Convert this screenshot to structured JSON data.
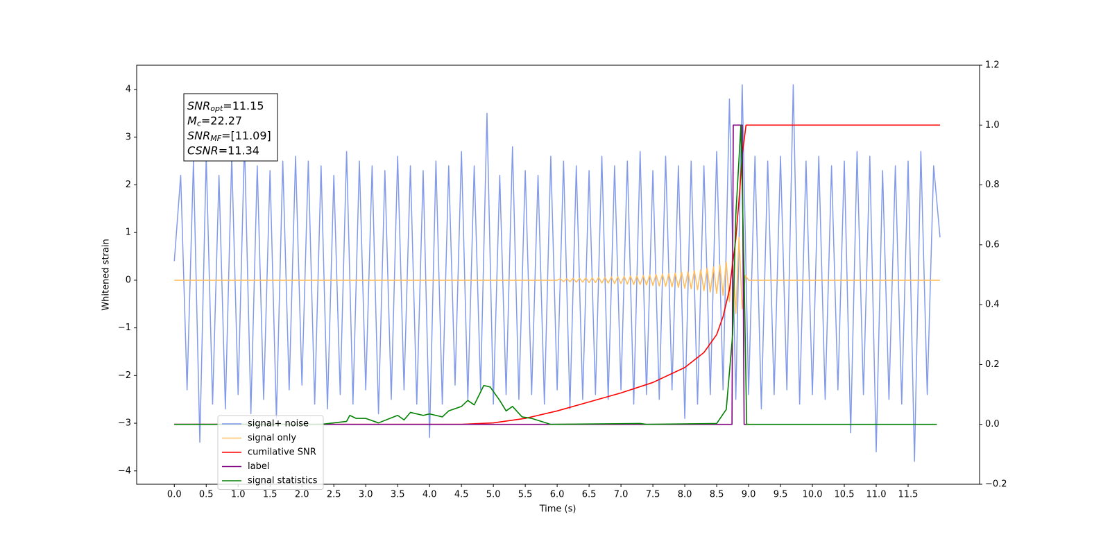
{
  "chart_data": {
    "type": "line",
    "xlabel": "Time (s)",
    "ylabel": "Whitened strain",
    "xlim": [
      -0.59,
      12.62
    ],
    "ylim": [
      -4.28,
      4.51
    ],
    "y2lim": [
      -0.2,
      1.2
    ],
    "xticks": [
      {
        "value": 0,
        "label": "0.0"
      },
      0.5,
      {
        "value": 1,
        "label": "1.0"
      },
      1.5,
      {
        "value": 2,
        "label": "2.0"
      },
      2.5,
      {
        "value": 3,
        "label": "3.0"
      },
      3.5,
      {
        "value": 4,
        "label": "4.0"
      },
      4.5,
      {
        "value": 5,
        "label": "5.0"
      },
      5.5,
      {
        "value": 6,
        "label": "6.0"
      },
      6.5,
      {
        "value": 7,
        "label": "7.0"
      },
      7.5,
      {
        "value": 8,
        "label": "8.0"
      },
      8.5,
      {
        "value": 9,
        "label": "9.0"
      },
      9.5,
      {
        "value": 10,
        "label": "10.0"
      },
      10.5,
      {
        "value": 11,
        "label": "11.0"
      },
      11.5
    ],
    "yticks": [
      {
        "value": -4,
        "label": "−4"
      },
      {
        "value": -3,
        "label": "−3"
      },
      {
        "value": -2,
        "label": "−2"
      },
      {
        "value": -1,
        "label": "−1"
      },
      0,
      1,
      2,
      3,
      4
    ],
    "y2ticks": [
      {
        "value": -0.2,
        "label": "−0.2"
      },
      {
        "value": 0,
        "label": "0.0"
      },
      0.2,
      0.4,
      0.6,
      0.8,
      {
        "value": 1,
        "label": "1.0"
      },
      1.2
    ],
    "legend": "lower left",
    "annotation": [
      {
        "main": "SNR",
        "sub": "opt",
        "text": "=11.15"
      },
      {
        "main": "M",
        "sub": "c",
        "text": "=22.27"
      },
      {
        "main": "SNR",
        "sub": "MF",
        "text": "=[11.09]"
      },
      {
        "main": "CSNR",
        "text": "=11.34"
      }
    ],
    "series": [
      {
        "name": "signal+ noise",
        "color": "#7b95e8",
        "x": [
          0,
          0.1,
          0.2,
          0.3,
          0.4,
          0.5,
          0.6,
          0.7,
          0.8,
          0.9,
          1,
          1.1,
          1.2,
          1.3,
          1.4,
          1.5,
          1.6,
          1.7,
          1.8,
          1.9,
          2,
          2.1,
          2.2,
          2.3,
          2.4,
          2.5,
          2.6,
          2.7,
          2.8,
          2.9,
          3,
          3.1,
          3.2,
          3.3,
          3.4,
          3.5,
          3.6,
          3.7,
          3.8,
          3.9,
          4,
          4.1,
          4.2,
          4.3,
          4.4,
          4.5,
          4.6,
          4.7,
          4.8,
          4.9,
          5,
          5.1,
          5.2,
          5.3,
          5.4,
          5.5,
          5.6,
          5.7,
          5.8,
          5.9,
          6,
          6.1,
          6.2,
          6.3,
          6.4,
          6.5,
          6.6,
          6.7,
          6.8,
          6.9,
          7,
          7.1,
          7.2,
          7.3,
          7.4,
          7.5,
          7.6,
          7.7,
          7.8,
          7.9,
          8,
          8.1,
          8.2,
          8.3,
          8.4,
          8.5,
          8.6,
          8.7,
          8.8,
          8.9,
          9,
          9.1,
          9.2,
          9.3,
          9.4,
          9.5,
          9.6,
          9.7,
          9.8,
          9.9,
          10,
          10.1,
          10.2,
          10.3,
          10.4,
          10.5,
          10.6,
          10.7,
          10.8,
          10.9,
          11,
          11.1,
          11.2,
          11.3,
          11.4,
          11.5,
          11.6,
          11.7,
          11.8,
          11.9,
          12
        ],
        "values": [
          0.4,
          2.2,
          -2.3,
          2.5,
          -3.4,
          2.6,
          -2.6,
          2.2,
          -2.7,
          2.6,
          -2.4,
          2.9,
          -2.8,
          2.4,
          -2.5,
          2.3,
          -2.9,
          2.5,
          -2.3,
          2.6,
          -2.2,
          2.5,
          -2.6,
          2.4,
          -2.7,
          2.2,
          -2.4,
          2.7,
          -2.6,
          2.5,
          -2.3,
          2.4,
          -2.8,
          2.3,
          -2.5,
          2.6,
          -2.3,
          2.4,
          -2.6,
          2.3,
          -3.3,
          2.5,
          -2.6,
          2.4,
          -2.2,
          2.7,
          -2.5,
          2.4,
          -2.3,
          3.5,
          -2.6,
          2.2,
          -2.4,
          2.8,
          -2.5,
          2.3,
          -2.4,
          2.2,
          -2.6,
          2.6,
          -2.3,
          2.5,
          -2.7,
          2.4,
          -2.5,
          2.3,
          -2.4,
          2.6,
          -2.5,
          2.4,
          -2.3,
          2.5,
          -2.6,
          2.7,
          -2.4,
          2.3,
          -2.5,
          2.6,
          -2.3,
          2.4,
          -2.9,
          2.5,
          -2.6,
          2.4,
          -2.4,
          2.7,
          -2.3,
          3.8,
          -2.5,
          4.1,
          -2.4,
          2.6,
          -2.7,
          2.5,
          -2.4,
          2.6,
          -2.3,
          4.1,
          -2.6,
          2.5,
          -2.4,
          2.6,
          -2.5,
          2.4,
          -2.3,
          2.5,
          -3.2,
          2.7,
          -2.4,
          2.6,
          -3.6,
          2.3,
          -2.5,
          2.4,
          -2.6,
          2.5,
          -3.8,
          2.7,
          -2.4,
          2.4,
          0.9
        ]
      },
      {
        "name": "signal only",
        "color": "#ffbf60",
        "x": [
          0,
          6,
          6.05,
          6.1,
          6.15,
          6.2,
          6.25,
          6.3,
          6.35,
          6.4,
          6.45,
          6.5,
          6.55,
          6.6,
          6.65,
          6.7,
          6.75,
          6.8,
          6.85,
          6.9,
          6.95,
          7,
          7.05,
          7.1,
          7.15,
          7.2,
          7.25,
          7.3,
          7.35,
          7.4,
          7.45,
          7.5,
          7.55,
          7.6,
          7.65,
          7.7,
          7.75,
          7.8,
          7.85,
          7.9,
          7.95,
          8,
          8.05,
          8.1,
          8.15,
          8.2,
          8.25,
          8.3,
          8.35,
          8.4,
          8.45,
          8.5,
          8.55,
          8.6,
          8.65,
          8.7,
          8.75,
          8.8,
          8.85,
          8.9,
          8.95,
          9,
          12
        ],
        "values": [
          0,
          0,
          0.03,
          -0.03,
          0.03,
          -0.03,
          0.04,
          -0.04,
          0.04,
          -0.04,
          0.05,
          -0.05,
          0.05,
          -0.05,
          0.06,
          -0.06,
          0.06,
          -0.06,
          0.07,
          -0.07,
          0.07,
          -0.07,
          0.08,
          -0.08,
          0.09,
          -0.09,
          0.09,
          -0.09,
          0.1,
          -0.1,
          0.11,
          -0.11,
          0.12,
          -0.12,
          0.13,
          -0.13,
          0.14,
          -0.14,
          0.15,
          -0.15,
          0.17,
          -0.17,
          0.18,
          -0.18,
          0.2,
          -0.2,
          0.22,
          -0.22,
          0.25,
          -0.25,
          0.28,
          -0.28,
          0.32,
          -0.32,
          0.38,
          -0.45,
          0.55,
          -0.7,
          0.9,
          -0.6,
          0.1,
          0,
          0
        ]
      },
      {
        "name": "cumilative SNR",
        "color": "#ff0000",
        "axis": "y2",
        "x": [
          0,
          4.5,
          5,
          5.5,
          6,
          6.5,
          7,
          7.5,
          8,
          8.3,
          8.5,
          8.6,
          8.7,
          8.8,
          8.85,
          8.9,
          8.96,
          12
        ],
        "values": [
          0,
          0,
          0.005,
          0.02,
          0.045,
          0.075,
          0.105,
          0.14,
          0.19,
          0.24,
          0.3,
          0.36,
          0.45,
          0.62,
          0.75,
          0.9,
          1,
          1
        ]
      },
      {
        "name": "label",
        "color": "#800080",
        "axis": "y2",
        "x": [
          0,
          8.74,
          8.76,
          8.9,
          8.93,
          9
        ],
        "values": [
          0,
          0,
          1,
          1,
          0,
          0
        ]
      },
      {
        "name": "signal statistics",
        "color": "#008000",
        "axis": "y2",
        "x": [
          0,
          2.3,
          2.5,
          2.7,
          2.75,
          2.85,
          3,
          3.2,
          3.5,
          3.6,
          3.7,
          3.9,
          4,
          4.2,
          4.3,
          4.5,
          4.6,
          4.7,
          4.85,
          4.95,
          5.1,
          5.2,
          5.3,
          5.45,
          5.6,
          5.75,
          5.9,
          7.3,
          7.4,
          8.5,
          8.65,
          8.75,
          8.8,
          8.88,
          8.93,
          8.97,
          11.95
        ],
        "values": [
          0,
          0,
          0.005,
          0.01,
          0.03,
          0.02,
          0.02,
          0.005,
          0.03,
          0.015,
          0.04,
          0.03,
          0.035,
          0.025,
          0.045,
          0.06,
          0.08,
          0.065,
          0.13,
          0.125,
          0.08,
          0.045,
          0.06,
          0.025,
          0.02,
          0.01,
          0,
          0.003,
          0,
          0.003,
          0.05,
          0.3,
          0.7,
          1,
          0.5,
          0,
          0
        ]
      }
    ]
  }
}
